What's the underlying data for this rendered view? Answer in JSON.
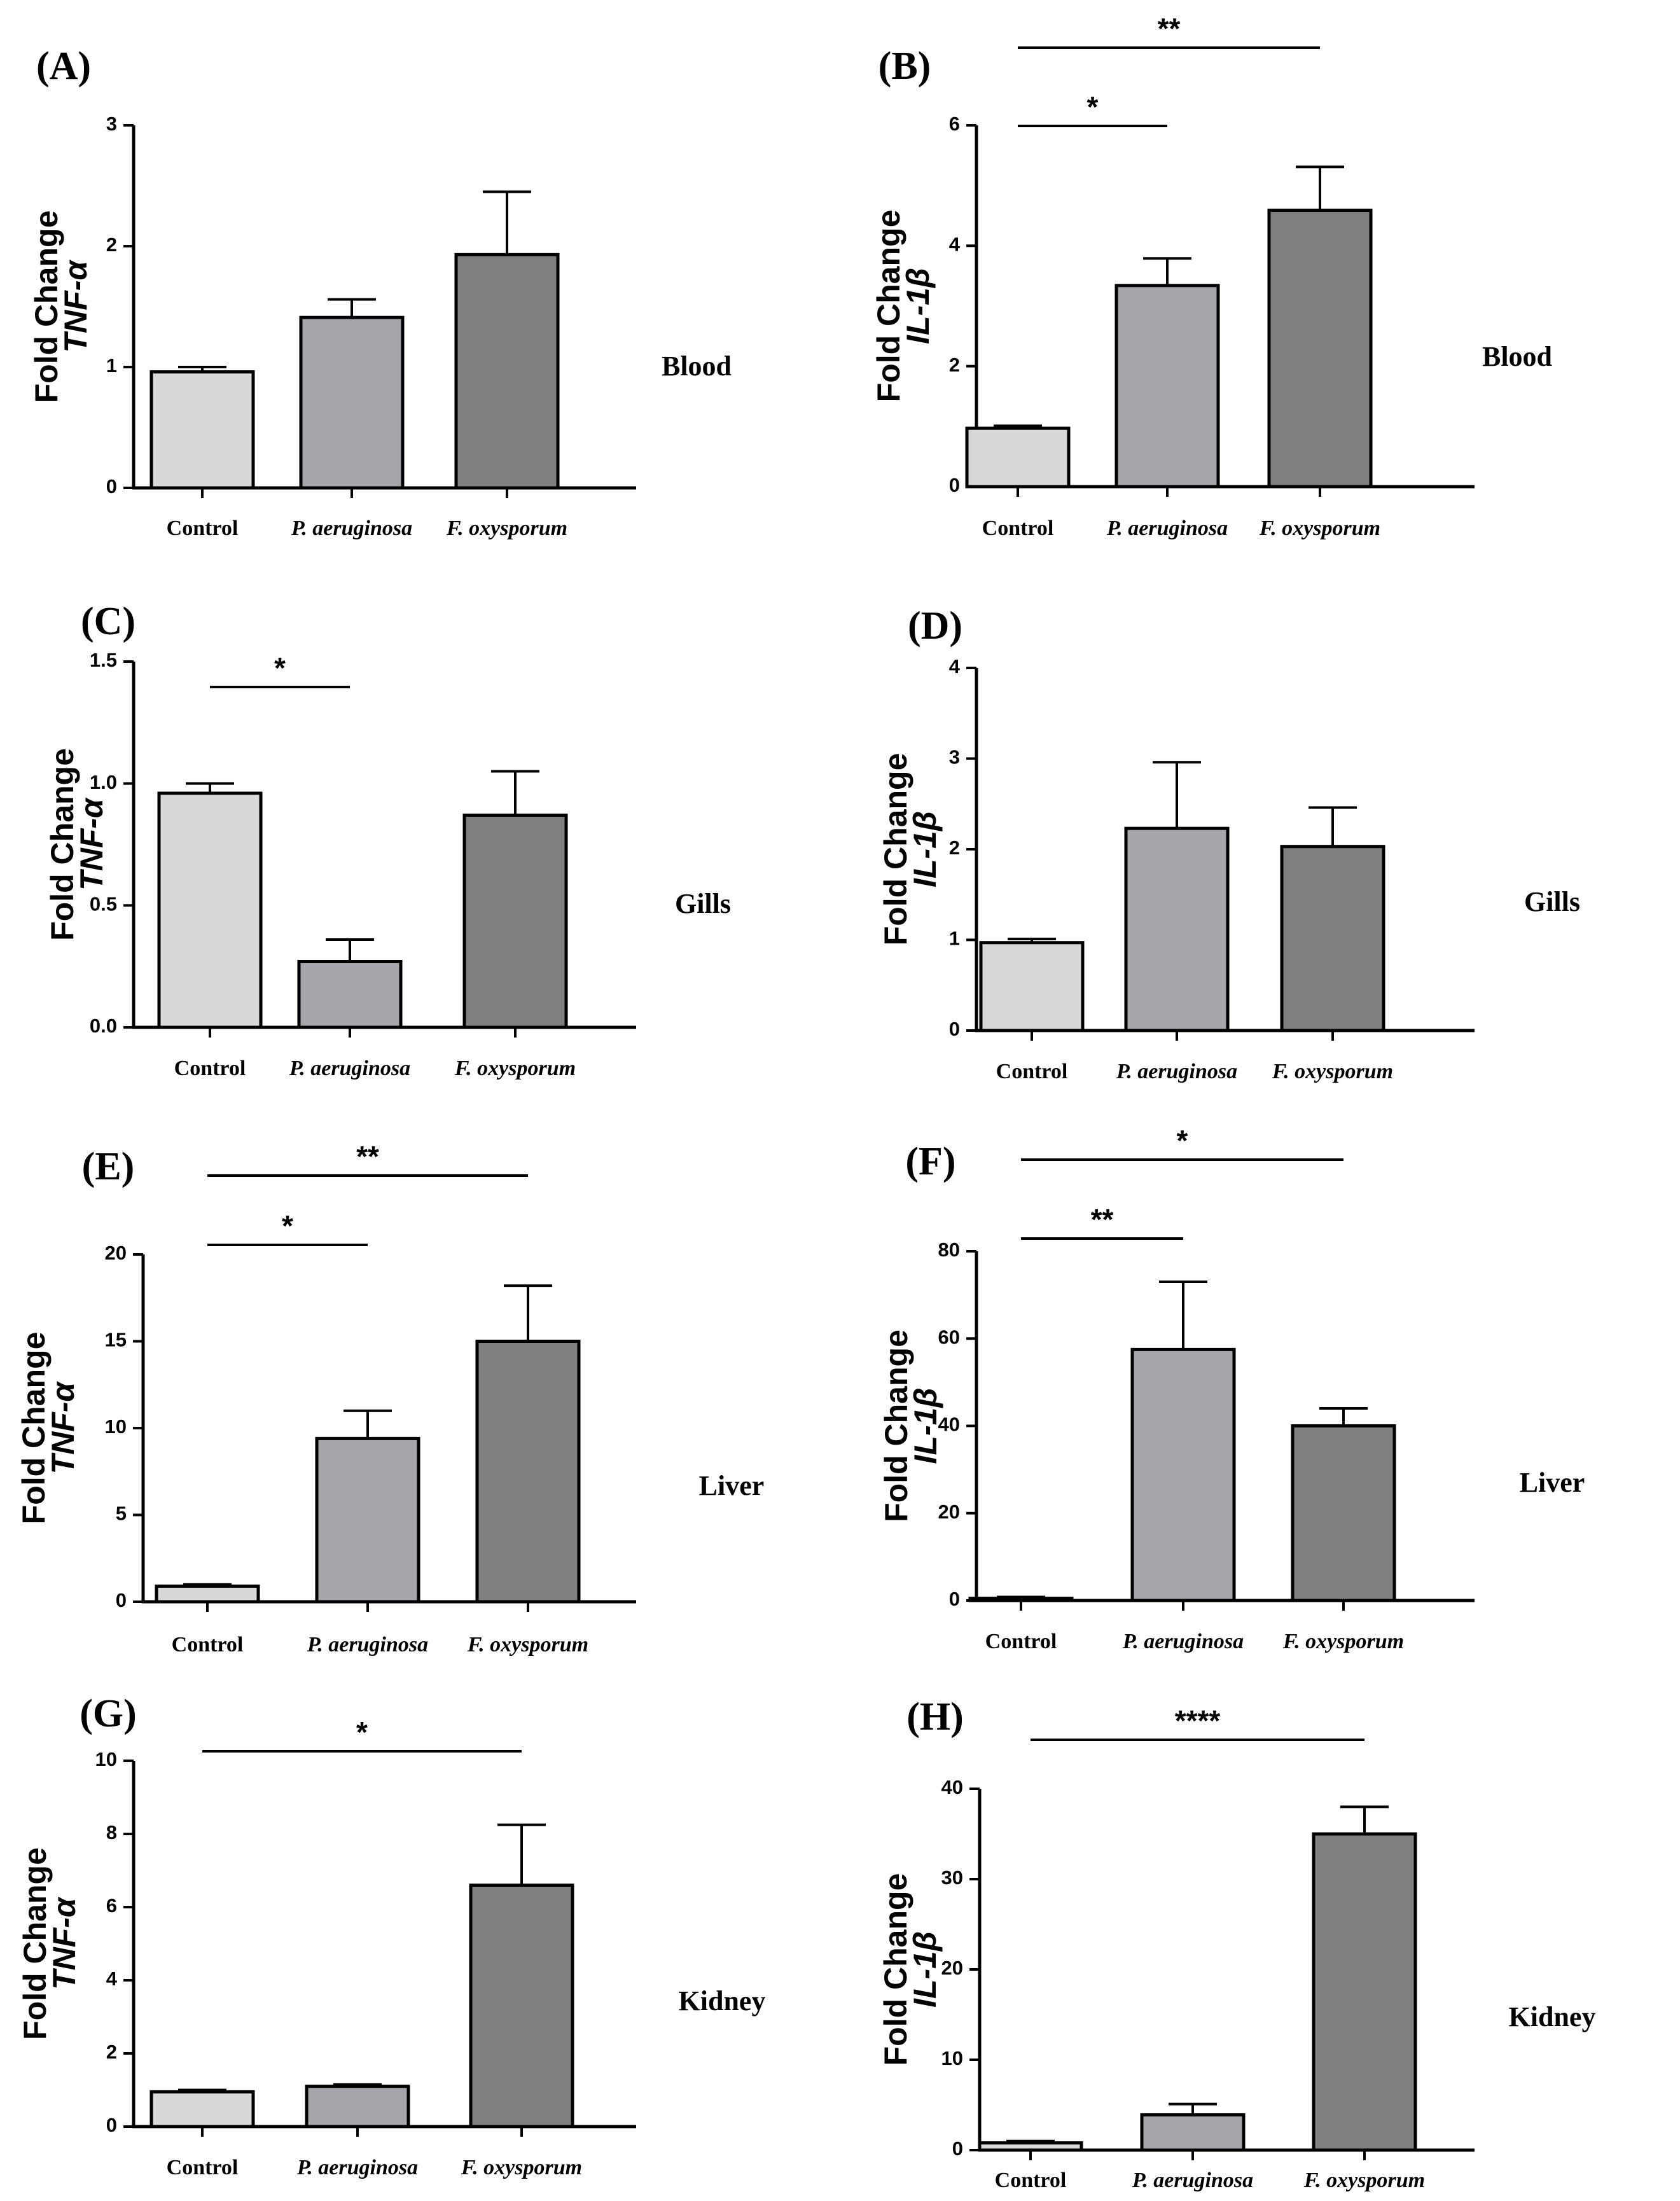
{
  "categories": [
    "Control",
    "P. aeruginosa",
    "F. oxysporum"
  ],
  "colors": {
    "bars": [
      "#d8d8d8",
      "#a6a5aa",
      "#7f7f7f"
    ],
    "stroke": "#000000"
  },
  "chart_data": [
    {
      "type": "bar",
      "panel": "(A)",
      "gene_label": "TNF-α",
      "ylabel": "Fold Change",
      "tissue": "Blood",
      "categories": [
        "Control",
        "P. aeruginosa",
        "F. oxysporum"
      ],
      "values": [
        0.96,
        1.41,
        1.93
      ],
      "errors": [
        0.04,
        0.15,
        0.52
      ],
      "ylim": [
        0,
        3
      ],
      "yticks": [
        "0",
        "1",
        "2",
        "3"
      ],
      "tick_values": [
        0,
        1,
        2,
        3
      ],
      "significance": []
    },
    {
      "type": "bar",
      "panel": "(B)",
      "gene_label": "IL-1β",
      "ylabel": "Fold Change",
      "tissue": "Blood",
      "categories": [
        "Control",
        "P. aeruginosa",
        "F. oxysporum"
      ],
      "values": [
        0.97,
        3.34,
        4.59
      ],
      "errors": [
        0.04,
        0.45,
        0.72
      ],
      "ylim": [
        0,
        6
      ],
      "yticks": [
        "0",
        "2",
        "4",
        "6"
      ],
      "tick_values": [
        0,
        2,
        4,
        6
      ],
      "significance": [
        {
          "from": 0,
          "to": 2,
          "label": "**"
        },
        {
          "from": 0,
          "to": 1,
          "label": "*"
        }
      ]
    },
    {
      "type": "bar",
      "panel": "(C)",
      "gene_label": "TNF-α",
      "ylabel": "Fold Change",
      "tissue": "Gills",
      "categories": [
        "Control",
        "P. aeruginosa",
        "F. oxysporum"
      ],
      "values": [
        0.96,
        0.27,
        0.87
      ],
      "errors": [
        0.04,
        0.09,
        0.18
      ],
      "ylim": [
        0,
        1.5
      ],
      "yticks": [
        "0.0",
        "0.5",
        "1.0",
        "1.5"
      ],
      "tick_values": [
        0,
        0.5,
        1,
        1.5
      ],
      "significance": [
        {
          "from": 0,
          "to": 1,
          "label": "*"
        }
      ]
    },
    {
      "type": "bar",
      "panel": "(D)",
      "gene_label": "IL-1β",
      "ylabel": "Fold Change",
      "tissue": "Gills",
      "categories": [
        "Control",
        "P. aeruginosa",
        "F. oxysporum"
      ],
      "values": [
        0.97,
        2.23,
        2.03
      ],
      "errors": [
        0.04,
        0.73,
        0.43
      ],
      "ylim": [
        0,
        4
      ],
      "yticks": [
        "0",
        "1",
        "2",
        "3",
        "4"
      ],
      "tick_values": [
        0,
        1,
        2,
        3,
        4
      ],
      "significance": []
    },
    {
      "type": "bar",
      "panel": "(E)",
      "gene_label": "TNF-α",
      "ylabel": "Fold Change",
      "tissue": "Liver",
      "categories": [
        "Control",
        "P. aeruginosa",
        "F. oxysporum"
      ],
      "values": [
        0.9,
        9.4,
        15.0
      ],
      "errors": [
        0.1,
        1.6,
        3.2
      ],
      "ylim": [
        0,
        20
      ],
      "yticks": [
        "0",
        "5",
        "10",
        "15",
        "20"
      ],
      "tick_values": [
        0,
        5,
        10,
        15,
        20
      ],
      "significance": [
        {
          "from": 0,
          "to": 2,
          "label": "**"
        },
        {
          "from": 0,
          "to": 1,
          "label": "*"
        }
      ]
    },
    {
      "type": "bar",
      "panel": "(F)",
      "gene_label": "IL-1β",
      "ylabel": "Fold Change",
      "tissue": "Liver",
      "categories": [
        "Control",
        "P. aeruginosa",
        "F. oxysporum"
      ],
      "values": [
        0.5,
        57.5,
        40.0
      ],
      "errors": [
        0.3,
        15.5,
        4.0
      ],
      "ylim": [
        0,
        80
      ],
      "yticks": [
        "0",
        "20",
        "40",
        "60",
        "80"
      ],
      "tick_values": [
        0,
        20,
        40,
        60,
        80
      ],
      "significance": [
        {
          "from": 0,
          "to": 2,
          "label": "*"
        },
        {
          "from": 0,
          "to": 1,
          "label": "**"
        }
      ]
    },
    {
      "type": "bar",
      "panel": "(G)",
      "gene_label": "TNF-α",
      "ylabel": "Fold Change",
      "tissue": "Kidney",
      "categories": [
        "Control",
        "P. aeruginosa",
        "F. oxysporum"
      ],
      "values": [
        0.95,
        1.1,
        6.6
      ],
      "errors": [
        0.05,
        0.05,
        1.65
      ],
      "ylim": [
        0,
        10
      ],
      "yticks": [
        "0",
        "2",
        "4",
        "6",
        "8",
        "10"
      ],
      "tick_values": [
        0,
        2,
        4,
        6,
        8,
        10
      ],
      "significance": [
        {
          "from": 0,
          "to": 2,
          "label": "*"
        }
      ]
    },
    {
      "type": "bar",
      "panel": "(H)",
      "gene_label": "IL-1β",
      "ylabel": "Fold Change",
      "tissue": "Kidney",
      "categories": [
        "Control",
        "P. aeruginosa",
        "F. oxysporum"
      ],
      "values": [
        0.8,
        3.9,
        35.0
      ],
      "errors": [
        0.2,
        1.2,
        3.0
      ],
      "ylim": [
        0,
        40
      ],
      "yticks": [
        "0",
        "10",
        "20",
        "30",
        "40"
      ],
      "tick_values": [
        0,
        10,
        20,
        30,
        40
      ],
      "significance": [
        {
          "from": 0,
          "to": 2,
          "label": "****"
        }
      ]
    }
  ]
}
